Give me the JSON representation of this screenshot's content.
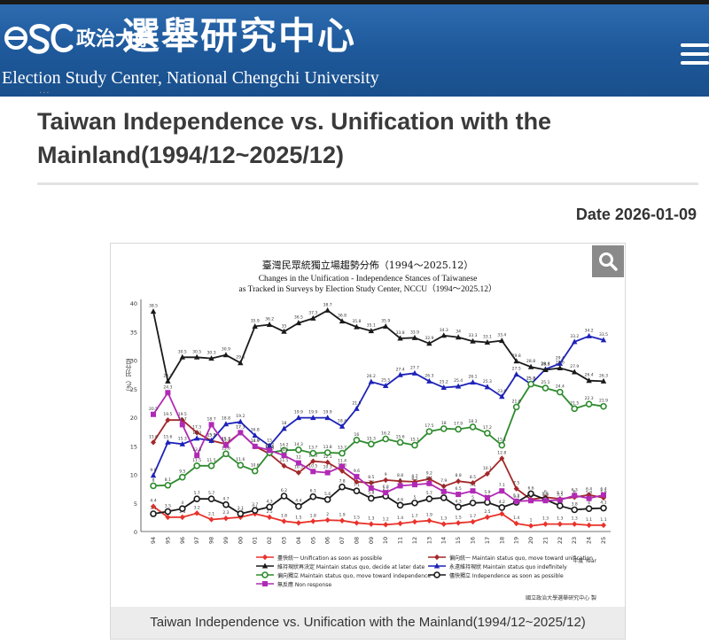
{
  "header": {
    "logo_cn": "政治大學選舉研究中心",
    "logo_cn_small": "政治大學",
    "logo_cn_big": "選舉研究中心",
    "logo_en": "Election Study Center, National Chengchi University",
    "logo_mark_text": "eSC"
  },
  "page": {
    "title": "Taiwan Independence vs. Unification with the Mainland(1994/12~2025/12)",
    "date_label": "Date 2026-01-09",
    "caption": "Taiwan Independence vs. Unification with the Mainland(1994/12~2025/12)"
  },
  "chart_data": {
    "type": "line",
    "title": "臺灣民眾統獨立場趨勢分佈（1994～2025.12）",
    "subtitle_line1": "Changes in the Unification - Independence Stances of Taiwanese",
    "subtitle_line2": "as Tracked in Surveys by Election Study Center, NCCU（1994～2025.12）",
    "ylabel": "百分比（%）",
    "xlabel": "年度 Year",
    "ylim": [
      0,
      40
    ],
    "yticks": [
      0,
      5,
      10,
      15,
      20,
      25,
      30,
      35,
      40
    ],
    "x": [
      "94",
      "95",
      "96",
      "97",
      "98",
      "99",
      "00",
      "01",
      "02",
      "03",
      "04",
      "05",
      "06",
      "07",
      "08",
      "09",
      "10",
      "11",
      "12",
      "13",
      "14",
      "15",
      "16",
      "17",
      "18",
      "19",
      "20",
      "21",
      "22",
      "23",
      "24",
      "25"
    ],
    "grid": false,
    "legend_position": "bottom",
    "source": "國立政治大學選舉研究中心 製",
    "series": [
      {
        "name": "盡快統一 Unification as soon as possible",
        "color": "#e8332b",
        "marker": "diamond",
        "values": [
          4.4,
          2.5,
          2.5,
          3.2,
          2.1,
          2.3,
          2.5,
          3.1,
          2.5,
          1.8,
          1.5,
          1.8,
          2.0,
          1.9,
          1.5,
          1.3,
          1.2,
          1.4,
          1.7,
          1.9,
          1.3,
          1.5,
          1.7,
          2.5,
          3.1,
          1.4,
          1.0,
          1.3,
          1.3,
          1.3,
          1.1,
          1.1
        ]
      },
      {
        "name": "偏向統一 Maintain status quo, move toward unification",
        "color": "#a3282a",
        "marker": "diamond",
        "values": [
          15.6,
          19.5,
          19.5,
          17.3,
          15.9,
          15.3,
          17.3,
          14.9,
          13.6,
          11.5,
          10.3,
          12.3,
          12.1,
          10.6,
          8.7,
          8.5,
          9.0,
          8.8,
          8.7,
          9.2,
          7.9,
          8.8,
          8.5,
          10.1,
          12.8,
          7.5,
          5.6,
          6.0,
          5.7,
          6.0,
          6.4,
          5.9
        ]
      },
      {
        "name": "永遠維持現狀 Maintain status quo indefinitely",
        "color": "#1d22b8",
        "marker": "triangle",
        "values": [
          9.8,
          15.6,
          15.3,
          16.3,
          15.9,
          18.8,
          19.2,
          16.8,
          15.0,
          18.0,
          19.9,
          19.9,
          19.9,
          18.4,
          21.5,
          26.2,
          25.5,
          27.4,
          27.7,
          26.3,
          25.2,
          25.4,
          26.1,
          25.3,
          23.6,
          27.5,
          25.8,
          28.4,
          29.4,
          33.2,
          34.2,
          33.5
        ]
      },
      {
        "name": "維持現狀再決定 Maintain status quo, decide at later date",
        "color": "#1a1a1a",
        "marker": "triangle",
        "values": [
          38.5,
          26.3,
          30.5,
          30.5,
          30.3,
          30.9,
          29.5,
          35.9,
          36.2,
          35.0,
          36.5,
          37.3,
          38.7,
          36.8,
          35.8,
          35.1,
          35.9,
          33.8,
          33.9,
          32.9,
          34.3,
          34.0,
          33.3,
          33.1,
          33.4,
          29.8,
          28.8,
          28.3,
          28.6,
          27.9,
          26.4,
          26.3
        ]
      },
      {
        "name": "偏向獨立 Maintain status quo, move toward independence",
        "color": "#2e8b2e",
        "marker": "circle",
        "values": [
          8.0,
          8.1,
          9.5,
          11.5,
          11.5,
          13.6,
          11.6,
          10.6,
          13.8,
          14.2,
          14.3,
          13.7,
          13.8,
          13.7,
          16.0,
          15.3,
          16.2,
          15.6,
          15.1,
          17.5,
          18.0,
          17.9,
          18.3,
          17.2,
          15.1,
          21.8,
          25.8,
          25.1,
          24.4,
          21.5,
          22.3,
          21.9
        ]
      },
      {
        "name": "儘快獨立 Independence as soon as possible",
        "color": "#1a1a1a",
        "marker": "circle",
        "values": [
          3.1,
          3.5,
          4.0,
          5.7,
          5.7,
          4.7,
          3.1,
          3.7,
          4.3,
          6.2,
          4.4,
          6.1,
          5.6,
          7.8,
          7.1,
          5.8,
          6.2,
          4.6,
          5.0,
          5.7,
          5.9,
          4.3,
          5.0,
          5.1,
          4.2,
          5.1,
          6.6,
          5.6,
          4.5,
          3.8,
          4.0,
          4.1
        ]
      },
      {
        "name": "無反應 Non response",
        "color": "#b02ab5",
        "marker": "square",
        "values": [
          20.5,
          24.3,
          18.7,
          13.3,
          18.7,
          15.1,
          17.3,
          14.9,
          14.2,
          13.3,
          12.0,
          10.5,
          10.3,
          11.4,
          9.6,
          7.6,
          6.8,
          8.0,
          8.2,
          8.4,
          7.0,
          6.5,
          7.1,
          5.9,
          7.1,
          5.3,
          5.4,
          5.4,
          5.5,
          6.3,
          5.8,
          6.4
        ]
      }
    ]
  }
}
